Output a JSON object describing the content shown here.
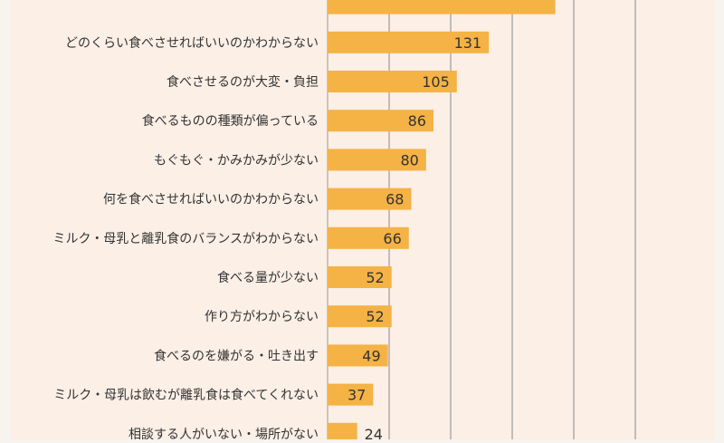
{
  "chart_data": {
    "type": "bar",
    "orientation": "horizontal",
    "categories": [
      "",
      "どのくらい食べさせればいいのかわからない",
      "食べさせるのが大変・負担",
      "食べるものの種類が偏っている",
      "もぐもぐ・かみかみが少ない",
      "何を食べさせればいいのかわからない",
      "ミルク・母乳と離乳食のバランスがわからない",
      "食べる量が少ない",
      "作り方がわからない",
      "食べるのを嫌がる・吐き出す",
      "ミルク・母乳は飲むが離乳食は食べてくれない",
      "相談する人がいない・場所がない"
    ],
    "values": [
      185,
      131,
      105,
      86,
      80,
      68,
      66,
      52,
      52,
      49,
      37,
      24
    ],
    "data_labels": [
      "",
      "131",
      "105",
      "86",
      "80",
      "68",
      "66",
      "52",
      "52",
      "49",
      "37",
      "24"
    ],
    "xlim": [
      0,
      280
    ],
    "grid": true,
    "colors": {
      "bar": "#f5b245",
      "background": "#f7f3ef",
      "plot_background": "#fbefe6",
      "grid": "#8a8a8a",
      "text": "#333333"
    }
  }
}
